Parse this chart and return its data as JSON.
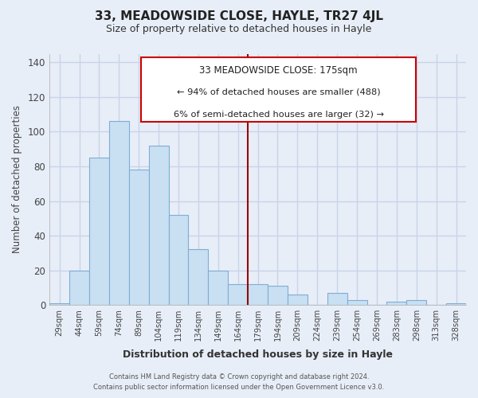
{
  "title": "33, MEADOWSIDE CLOSE, HAYLE, TR27 4JL",
  "subtitle": "Size of property relative to detached houses in Hayle",
  "xlabel": "Distribution of detached houses by size in Hayle",
  "ylabel": "Number of detached properties",
  "bar_labels": [
    "29sqm",
    "44sqm",
    "59sqm",
    "74sqm",
    "89sqm",
    "104sqm",
    "119sqm",
    "134sqm",
    "149sqm",
    "164sqm",
    "179sqm",
    "194sqm",
    "209sqm",
    "224sqm",
    "239sqm",
    "254sqm",
    "269sqm",
    "283sqm",
    "298sqm",
    "313sqm",
    "328sqm"
  ],
  "bar_values": [
    1,
    20,
    85,
    106,
    78,
    92,
    52,
    32,
    20,
    12,
    12,
    11,
    6,
    0,
    7,
    3,
    0,
    2,
    3,
    0,
    1
  ],
  "bar_color": "#c9dff2",
  "bar_edge_color": "#7eadd4",
  "highlight_line_color": "#990000",
  "ylim": [
    0,
    145
  ],
  "yticks": [
    0,
    20,
    40,
    60,
    80,
    100,
    120,
    140
  ],
  "annotation_title": "33 MEADOWSIDE CLOSE: 175sqm",
  "annotation_line1": "← 94% of detached houses are smaller (488)",
  "annotation_line2": "6% of semi-detached houses are larger (32) →",
  "annotation_box_color": "#ffffff",
  "annotation_box_edge": "#cc0000",
  "footer_line1": "Contains HM Land Registry data © Crown copyright and database right 2024.",
  "footer_line2": "Contains public sector information licensed under the Open Government Licence v3.0.",
  "background_color": "#e8eef8",
  "plot_bg_color": "#e8eef8",
  "grid_color": "#c8d4e8",
  "title_fontsize": 11,
  "subtitle_fontsize": 9
}
